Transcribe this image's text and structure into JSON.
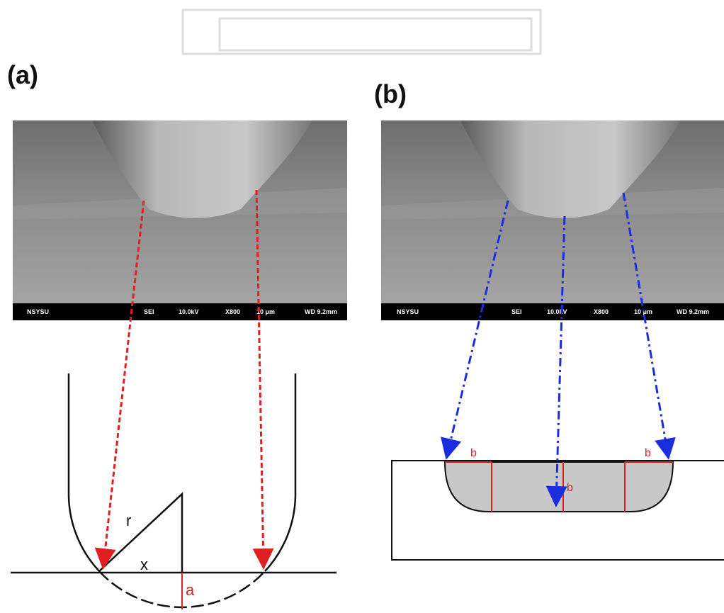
{
  "panels": [
    {
      "label": "(a)",
      "sem_bar": [
        "NSYSU",
        "SEI",
        "10.0kV",
        "X800",
        "10 μm",
        "WD 9.2mm"
      ],
      "diagram": {
        "radius": "r",
        "half_width": "x",
        "depth": "a"
      }
    },
    {
      "label": "(b)",
      "sem_bar": [
        "NSYSU",
        "SEI",
        "10.0kV",
        "X800",
        "10 μm",
        "WD 9.2mm"
      ],
      "diagram": {
        "widths": [
          "b",
          "b",
          "b"
        ]
      }
    }
  ]
}
